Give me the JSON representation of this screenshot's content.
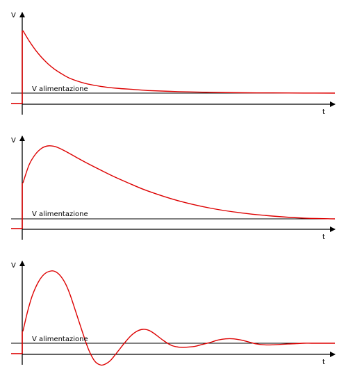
{
  "colors": {
    "axis": "#000000",
    "signal": "#dd0000",
    "supply_line": "#000000"
  },
  "chart_data": [
    {
      "type": "line",
      "ylabel": "V",
      "xlabel": "t",
      "reference_label": "V alimentazione",
      "xlim": [
        0,
        10
      ],
      "ylim": [
        -0.3,
        2.0
      ],
      "reference": 0,
      "pre_step_level": -0.3,
      "series": [
        {
          "x": [
            0,
            0.2,
            0.4,
            0.6,
            0.8,
            1.0,
            1.2,
            1.5,
            2.0,
            2.5,
            3.0,
            3.5,
            4.0,
            5.0,
            6.0,
            7.0,
            8.0,
            9.0,
            10.0
          ],
          "y": [
            1.68,
            1.4,
            1.16,
            0.96,
            0.79,
            0.65,
            0.54,
            0.4,
            0.26,
            0.18,
            0.13,
            0.1,
            0.07,
            0.04,
            0.02,
            0.01,
            0.005,
            0.002,
            0.0
          ]
        }
      ]
    },
    {
      "type": "line",
      "ylabel": "V",
      "xlabel": "t",
      "reference_label": "V alimentazione",
      "xlim": [
        0,
        10
      ],
      "ylim": [
        -0.3,
        2.0
      ],
      "reference": 0,
      "pre_step_level": -0.3,
      "series": [
        {
          "x": [
            0,
            0.2,
            0.4,
            0.6,
            0.8,
            1.0,
            1.2,
            1.4,
            1.7,
            2.0,
            2.5,
            3.0,
            3.5,
            4.0,
            5.0,
            6.0,
            7.0,
            8.0,
            9.0,
            10.0
          ],
          "y": [
            0.9,
            1.36,
            1.62,
            1.77,
            1.83,
            1.82,
            1.76,
            1.68,
            1.55,
            1.42,
            1.22,
            1.03,
            0.86,
            0.7,
            0.45,
            0.27,
            0.15,
            0.07,
            0.02,
            0.0
          ]
        }
      ]
    },
    {
      "type": "line",
      "ylabel": "V",
      "xlabel": "t",
      "reference_label": "V alimentazione",
      "xlim": [
        0,
        10
      ],
      "ylim": [
        -0.85,
        2.0
      ],
      "reference": 0,
      "pre_step_level": -0.3,
      "series": [
        {
          "x": [
            0,
            0.15,
            0.3,
            0.5,
            0.7,
            0.9,
            1.05,
            1.2,
            1.35,
            1.5,
            1.7,
            1.9,
            2.1,
            2.3,
            2.5,
            2.65,
            2.8,
            2.95,
            3.1,
            3.25,
            3.45,
            3.65,
            3.85,
            4.05,
            4.25,
            4.5,
            4.75,
            5.0,
            5.25,
            5.5,
            5.75,
            6.0,
            6.25,
            6.5,
            6.75,
            7.0,
            7.25,
            7.5,
            7.75,
            8.0,
            8.25,
            8.5,
            8.75,
            9.0,
            9.25,
            9.5,
            9.75,
            10.0
          ],
          "y": [
            0.3,
            0.8,
            1.2,
            1.55,
            1.75,
            1.82,
            1.8,
            1.7,
            1.52,
            1.25,
            0.78,
            0.3,
            -0.15,
            -0.45,
            -0.55,
            -0.52,
            -0.44,
            -0.3,
            -0.15,
            0.0,
            0.18,
            0.3,
            0.35,
            0.32,
            0.22,
            0.07,
            -0.05,
            -0.1,
            -0.1,
            -0.08,
            -0.03,
            0.02,
            0.08,
            0.11,
            0.11,
            0.08,
            0.03,
            -0.02,
            -0.04,
            -0.04,
            -0.03,
            -0.02,
            -0.01,
            0.0,
            0.0,
            0.0,
            0.0,
            0.0
          ]
        }
      ]
    }
  ]
}
